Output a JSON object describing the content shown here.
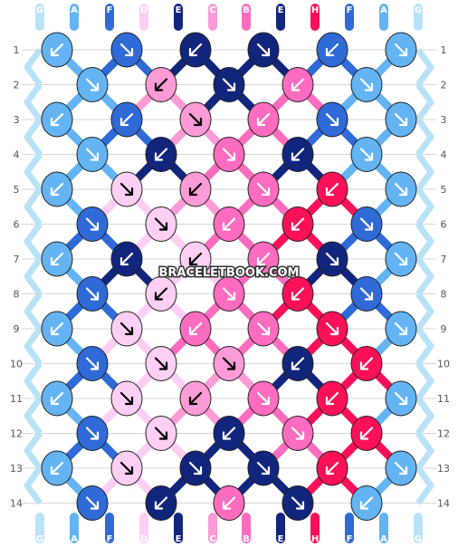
{
  "pattern": {
    "watermark": "BRACELETBOOK.COM",
    "rows": 14,
    "row_labels": [
      "1",
      "2",
      "3",
      "4",
      "5",
      "6",
      "7",
      "8",
      "9",
      "10",
      "11",
      "12",
      "13",
      "14"
    ],
    "top_labels": [
      "G",
      "A",
      "F",
      "D",
      "E",
      "C",
      "B",
      "E",
      "H",
      "F",
      "A",
      "G"
    ],
    "bottom_labels": [
      "G",
      "A",
      "F",
      "D",
      "E",
      "C",
      "B",
      "E",
      "H",
      "F",
      "A",
      "G"
    ],
    "colors": {
      "A": "#64b4f4",
      "B": "#fd6cbe",
      "C": "#fc9bd6",
      "D": "#fecff4",
      "E": "#12257d",
      "F": "#2f6ad7",
      "G": "#b9e2f7",
      "H": "#fc1158"
    },
    "knot_colors": [
      [
        "A",
        "F",
        "E",
        "E",
        "F",
        "A"
      ],
      [
        "A",
        "C",
        "E",
        "B",
        "A"
      ],
      [
        "A",
        "F",
        "C",
        "B",
        "F",
        "A"
      ],
      [
        "A",
        "E",
        "B",
        "E",
        "A"
      ],
      [
        "A",
        "D",
        "C",
        "B",
        "H",
        "A"
      ],
      [
        "F",
        "D",
        "B",
        "H",
        "F"
      ],
      [
        "A",
        "E",
        "D",
        "B",
        "E",
        "A"
      ],
      [
        "F",
        "D",
        "B",
        "H",
        "F"
      ],
      [
        "A",
        "D",
        "B",
        "B",
        "H",
        "A"
      ],
      [
        "F",
        "D",
        "C",
        "E",
        "H"
      ],
      [
        "A",
        "D",
        "C",
        "B",
        "H",
        "A"
      ],
      [
        "F",
        "D",
        "E",
        "B",
        "H"
      ],
      [
        "A",
        "D",
        "E",
        "E",
        "H",
        "A"
      ],
      [
        "F",
        "E",
        "B",
        "E",
        "A"
      ]
    ],
    "knot_types": [
      [
        "bl",
        "br",
        "bl",
        "br",
        "bl",
        "br"
      ],
      [
        "br",
        "bl",
        "br",
        "bl",
        "br"
      ],
      [
        "bl",
        "bl",
        "br",
        "bl",
        "br",
        "br"
      ],
      [
        "br",
        "bl",
        "br",
        "bl",
        "br"
      ],
      [
        "bl",
        "br",
        "bl",
        "br",
        "bl",
        "br"
      ],
      [
        "br",
        "br",
        "bl",
        "bl",
        "br"
      ],
      [
        "bl",
        "bl",
        "bl",
        "bl",
        "br",
        "br"
      ],
      [
        "br",
        "bl",
        "br",
        "bl",
        "br"
      ],
      [
        "bl",
        "br",
        "bl",
        "br",
        "br",
        "br"
      ],
      [
        "br",
        "br",
        "br",
        "bl",
        "bl"
      ],
      [
        "bl",
        "br",
        "bl",
        "br",
        "bl",
        "br"
      ],
      [
        "br",
        "br",
        "bl",
        "br",
        "bl"
      ],
      [
        "bl",
        "br",
        "br",
        "br",
        "bl",
        "br"
      ],
      [
        "br",
        "bl",
        "bl",
        "br",
        "bl"
      ]
    ]
  }
}
